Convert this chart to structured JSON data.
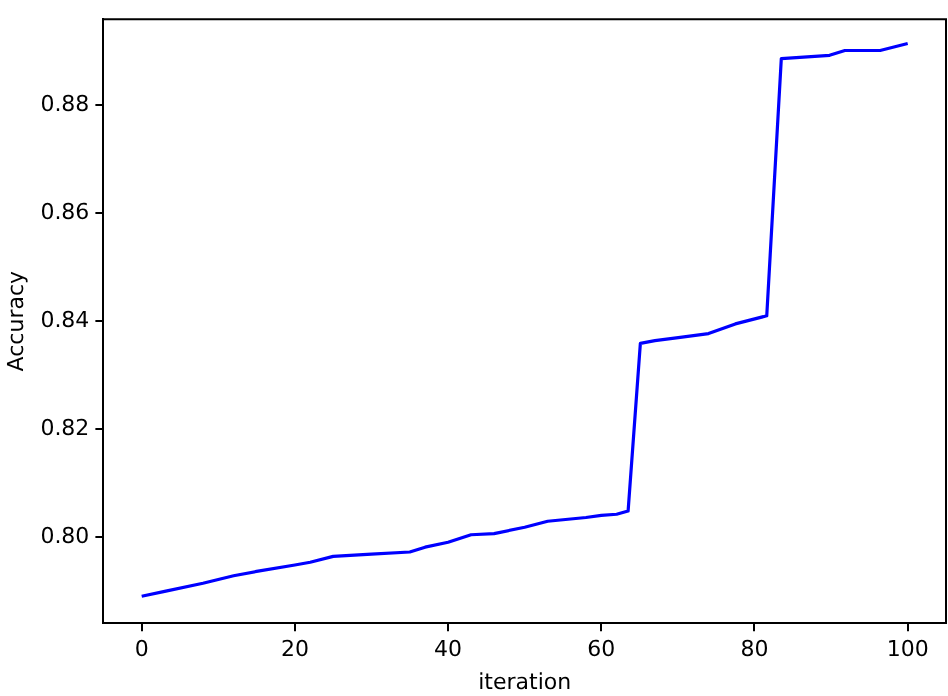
{
  "chart_data": {
    "type": "line",
    "xlabel": "iteration",
    "ylabel": "Accuracy",
    "x": [
      0,
      3,
      8,
      12,
      15,
      20,
      22,
      25,
      30,
      35,
      37,
      40,
      43,
      46,
      50,
      53,
      58,
      60,
      62,
      63.5,
      65.1,
      67,
      70.3,
      74,
      77.5,
      81.6,
      83.5,
      89.8,
      91.8,
      96.4,
      100
    ],
    "series": [
      {
        "color": "#0000ff",
        "values": [
          0.789,
          0.7899,
          0.7914,
          0.7928,
          0.7936,
          0.7948,
          0.7953,
          0.7964,
          0.7968,
          0.7972,
          0.7981,
          0.799,
          0.8004,
          0.8006,
          0.8018,
          0.8029,
          0.8036,
          0.804,
          0.8042,
          0.8048,
          0.8359,
          0.8364,
          0.837,
          0.8377,
          0.8395,
          0.841,
          0.8887,
          0.8893,
          0.8902,
          0.8902,
          0.8915
        ]
      }
    ],
    "xlim": [
      -5,
      105
    ],
    "xticks": [
      0,
      20,
      40,
      60,
      80,
      100
    ],
    "ylim": [
      0.784,
      0.896
    ],
    "yticks": [
      {
        "value": 0.8,
        "label": "0.80"
      },
      {
        "value": 0.82,
        "label": "0.82"
      },
      {
        "value": 0.84,
        "label": "0.84"
      },
      {
        "value": 0.86,
        "label": "0.86"
      },
      {
        "value": 0.88,
        "label": "0.88"
      }
    ],
    "grid": false,
    "legend": false,
    "marker": "none",
    "line_style": "solid"
  }
}
